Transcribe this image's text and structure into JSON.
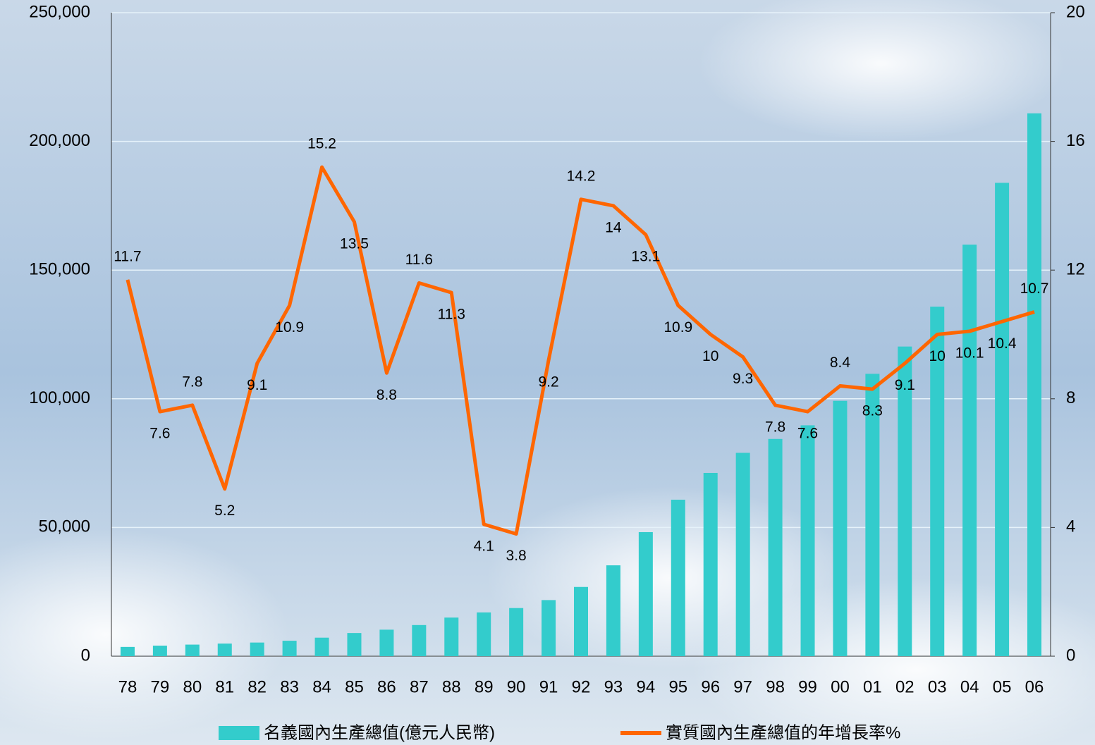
{
  "chart_data": {
    "type": "bar-line",
    "categories": [
      "78",
      "79",
      "80",
      "81",
      "82",
      "83",
      "84",
      "85",
      "86",
      "87",
      "88",
      "89",
      "90",
      "91",
      "92",
      "93",
      "94",
      "95",
      "96",
      "97",
      "98",
      "99",
      "00",
      "01",
      "02",
      "03",
      "04",
      "05",
      "06"
    ],
    "series": [
      {
        "name": "名義國內生產總值(億元人民幣)",
        "type": "bar",
        "color": "#33cccc",
        "values": [
          3600,
          4100,
          4500,
          4900,
          5300,
          6000,
          7200,
          9000,
          10300,
          12100,
          15000,
          17000,
          18700,
          21800,
          26900,
          35300,
          48200,
          60800,
          71200,
          79000,
          84400,
          89700,
          99200,
          109700,
          120300,
          135800,
          159900,
          183900,
          210900
        ]
      },
      {
        "name": "實質國內生產總值的年增長率%",
        "type": "line",
        "axis": "y2",
        "color": "#ff6600",
        "values": [
          11.7,
          7.6,
          7.8,
          5.2,
          9.1,
          10.9,
          15.2,
          13.5,
          8.8,
          11.6,
          11.3,
          4.1,
          3.8,
          9.2,
          14.2,
          14,
          13.1,
          10.9,
          10,
          9.3,
          7.8,
          7.6,
          8.4,
          8.3,
          9.1,
          10,
          10.1,
          10.4,
          10.7
        ]
      }
    ],
    "ylim": [
      0,
      250000
    ],
    "yticks": [
      0,
      {
        "value": 50000,
        "label": "50,000"
      },
      {
        "value": 100000,
        "label": "100,000"
      },
      {
        "value": 150000,
        "label": "150,000"
      },
      {
        "value": 200000,
        "label": "200,000"
      },
      {
        "value": 250000,
        "label": "250,000"
      }
    ],
    "y2lim": [
      0,
      20
    ],
    "y2ticks": [
      0,
      4,
      8,
      12,
      16,
      20
    ],
    "grid": true
  }
}
